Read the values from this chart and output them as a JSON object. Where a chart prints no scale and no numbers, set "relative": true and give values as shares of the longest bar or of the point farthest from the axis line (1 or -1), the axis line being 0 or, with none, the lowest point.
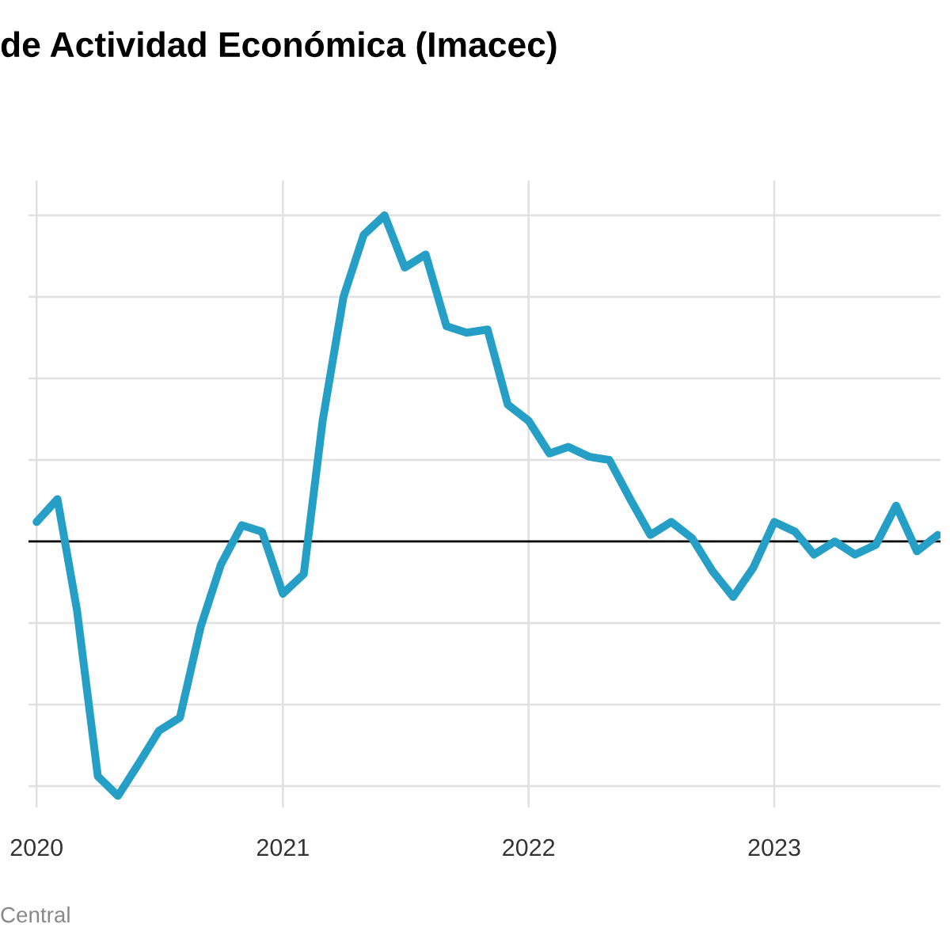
{
  "chart_data": {
    "type": "line",
    "title": "de Actividad Económica (Imacec)",
    "relative": true,
    "x": [
      "2020-01",
      "2020-02",
      "2020-03",
      "2020-04",
      "2020-05",
      "2020-06",
      "2020-07",
      "2020-08",
      "2020-09",
      "2020-10",
      "2020-11",
      "2020-12",
      "2021-01",
      "2021-02",
      "2021-03",
      "2021-04",
      "2021-05",
      "2021-06",
      "2021-07",
      "2021-08",
      "2021-09",
      "2021-10",
      "2021-11",
      "2021-12",
      "2022-01",
      "2022-02",
      "2022-03",
      "2022-04",
      "2022-05",
      "2022-06",
      "2022-07",
      "2022-08",
      "2022-09",
      "2022-10",
      "2022-11",
      "2022-12",
      "2023-01",
      "2023-02",
      "2023-03",
      "2023-04",
      "2023-05",
      "2023-06",
      "2023-07",
      "2023-08",
      "2023-09"
    ],
    "series": [
      {
        "color": "#259fc6",
        "values": [
          0.06,
          0.13,
          -0.21,
          -0.72,
          -0.78,
          -0.68,
          -0.58,
          -0.54,
          -0.26,
          -0.07,
          0.05,
          0.03,
          -0.16,
          -0.1,
          0.37,
          0.75,
          0.94,
          1,
          0.84,
          0.88,
          0.66,
          0.64,
          0.65,
          0.42,
          0.37,
          0.27,
          0.29,
          0.26,
          0.25,
          0.13,
          0.02,
          0.06,
          0.01,
          -0.09,
          -0.17,
          -0.08,
          0.06,
          0.03,
          -0.04,
          0.0,
          -0.04,
          -0.01,
          0.11,
          -0.03,
          0.02
        ]
      }
    ],
    "xlim": [
      "2019-12-20",
      "2023-09-05"
    ],
    "xticks": [
      {
        "value": "2020-01-01",
        "label": "2020"
      },
      {
        "value": "2021-01-01",
        "label": "2021"
      },
      {
        "value": "2022-01-01",
        "label": "2022"
      },
      {
        "value": "2023-01-01",
        "label": "2023"
      }
    ],
    "ref_lines": [
      {
        "axis": "y",
        "value": 0,
        "color": "#000000"
      }
    ],
    "grid": true,
    "annotations": [
      "Central"
    ]
  }
}
